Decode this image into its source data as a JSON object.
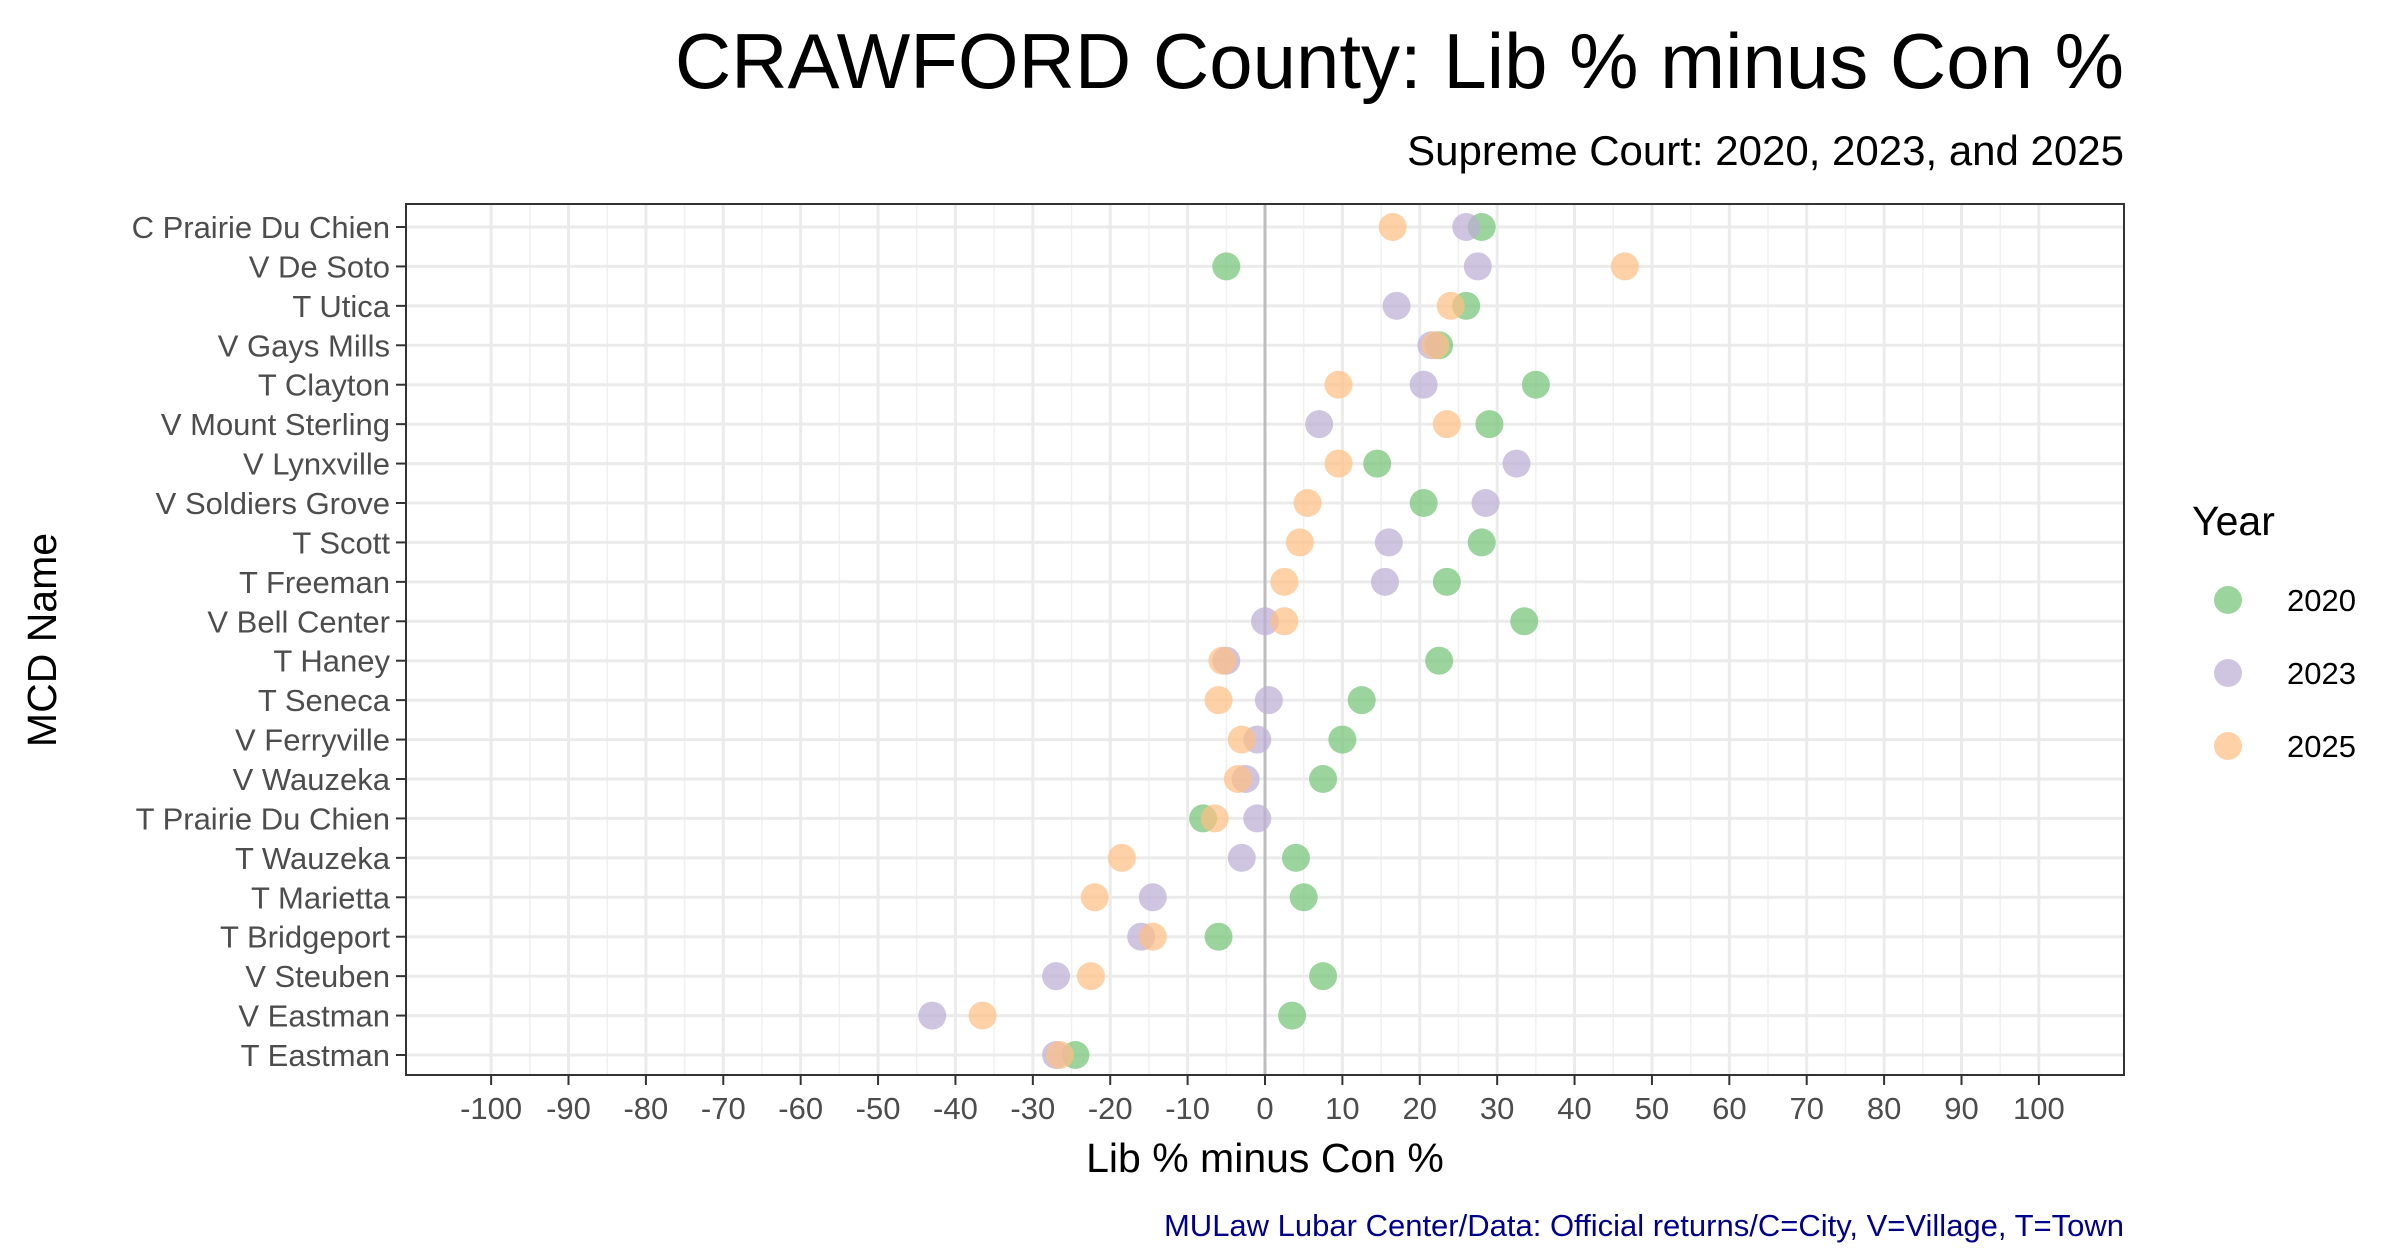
{
  "chart_data": {
    "type": "scatter",
    "title": "CRAWFORD County: Lib % minus Con %",
    "subtitle": "Supreme Court: 2020, 2023, and 2025",
    "xlabel": "Lib % minus Con %",
    "ylabel": "MCD Name",
    "caption": "MULaw Lubar Center/Data: Official returns/C=City, V=Village, T=Town",
    "xlim": [
      -111,
      111
    ],
    "x_ticks": [
      -100,
      -90,
      -80,
      -70,
      -60,
      -50,
      -40,
      -30,
      -20,
      -10,
      0,
      10,
      20,
      30,
      40,
      50,
      60,
      70,
      80,
      90,
      100
    ],
    "x_tick_labels": [
      "-100",
      "-90",
      "-80",
      "-70",
      "-60",
      "-50",
      "-40",
      "-30",
      "-20",
      "-10",
      "0",
      "10",
      "20",
      "30",
      "40",
      "50",
      "60",
      "70",
      "80",
      "90",
      "100"
    ],
    "grid": true,
    "zero_line": true,
    "legend": {
      "title": "Year",
      "position": "right"
    },
    "categories": [
      "C Prairie Du Chien",
      "V De Soto",
      "T Utica",
      "V Gays Mills",
      "T Clayton",
      "V Mount Sterling",
      "V Lynxville",
      "V Soldiers Grove",
      "T Scott",
      "T Freeman",
      "V Bell Center",
      "T Haney",
      "T Seneca",
      "V Ferryville",
      "V Wauzeka",
      "T Prairie Du Chien",
      "T Wauzeka",
      "T Marietta",
      "T Bridgeport",
      "V Steuben",
      "V Eastman",
      "T Eastman"
    ],
    "series": [
      {
        "name": "2020",
        "color": "#74c476",
        "values": [
          28,
          -5,
          26,
          22.5,
          35,
          29,
          14.5,
          20.5,
          28,
          23.5,
          33.5,
          22.5,
          12.5,
          10,
          7.5,
          -8,
          4,
          5,
          -6,
          7.5,
          3.5,
          -24.5
        ]
      },
      {
        "name": "2023",
        "color": "#bcaed6",
        "values": [
          26,
          27.5,
          17,
          21.5,
          20.5,
          7,
          32.5,
          28.5,
          16,
          15.5,
          0,
          -5,
          0.5,
          -1,
          -2.5,
          -1,
          -3,
          -14.5,
          -16,
          -27,
          -43,
          -27
        ]
      },
      {
        "name": "2025",
        "color": "#fdbf85",
        "values": [
          16.5,
          46.5,
          24,
          22,
          9.5,
          23.5,
          9.5,
          5.5,
          4.5,
          2.5,
          2.5,
          -5.5,
          -6,
          -3,
          -3.5,
          -6.5,
          -18.5,
          -22,
          -14.5,
          -22.5,
          -36.5,
          -26.5
        ]
      }
    ]
  }
}
